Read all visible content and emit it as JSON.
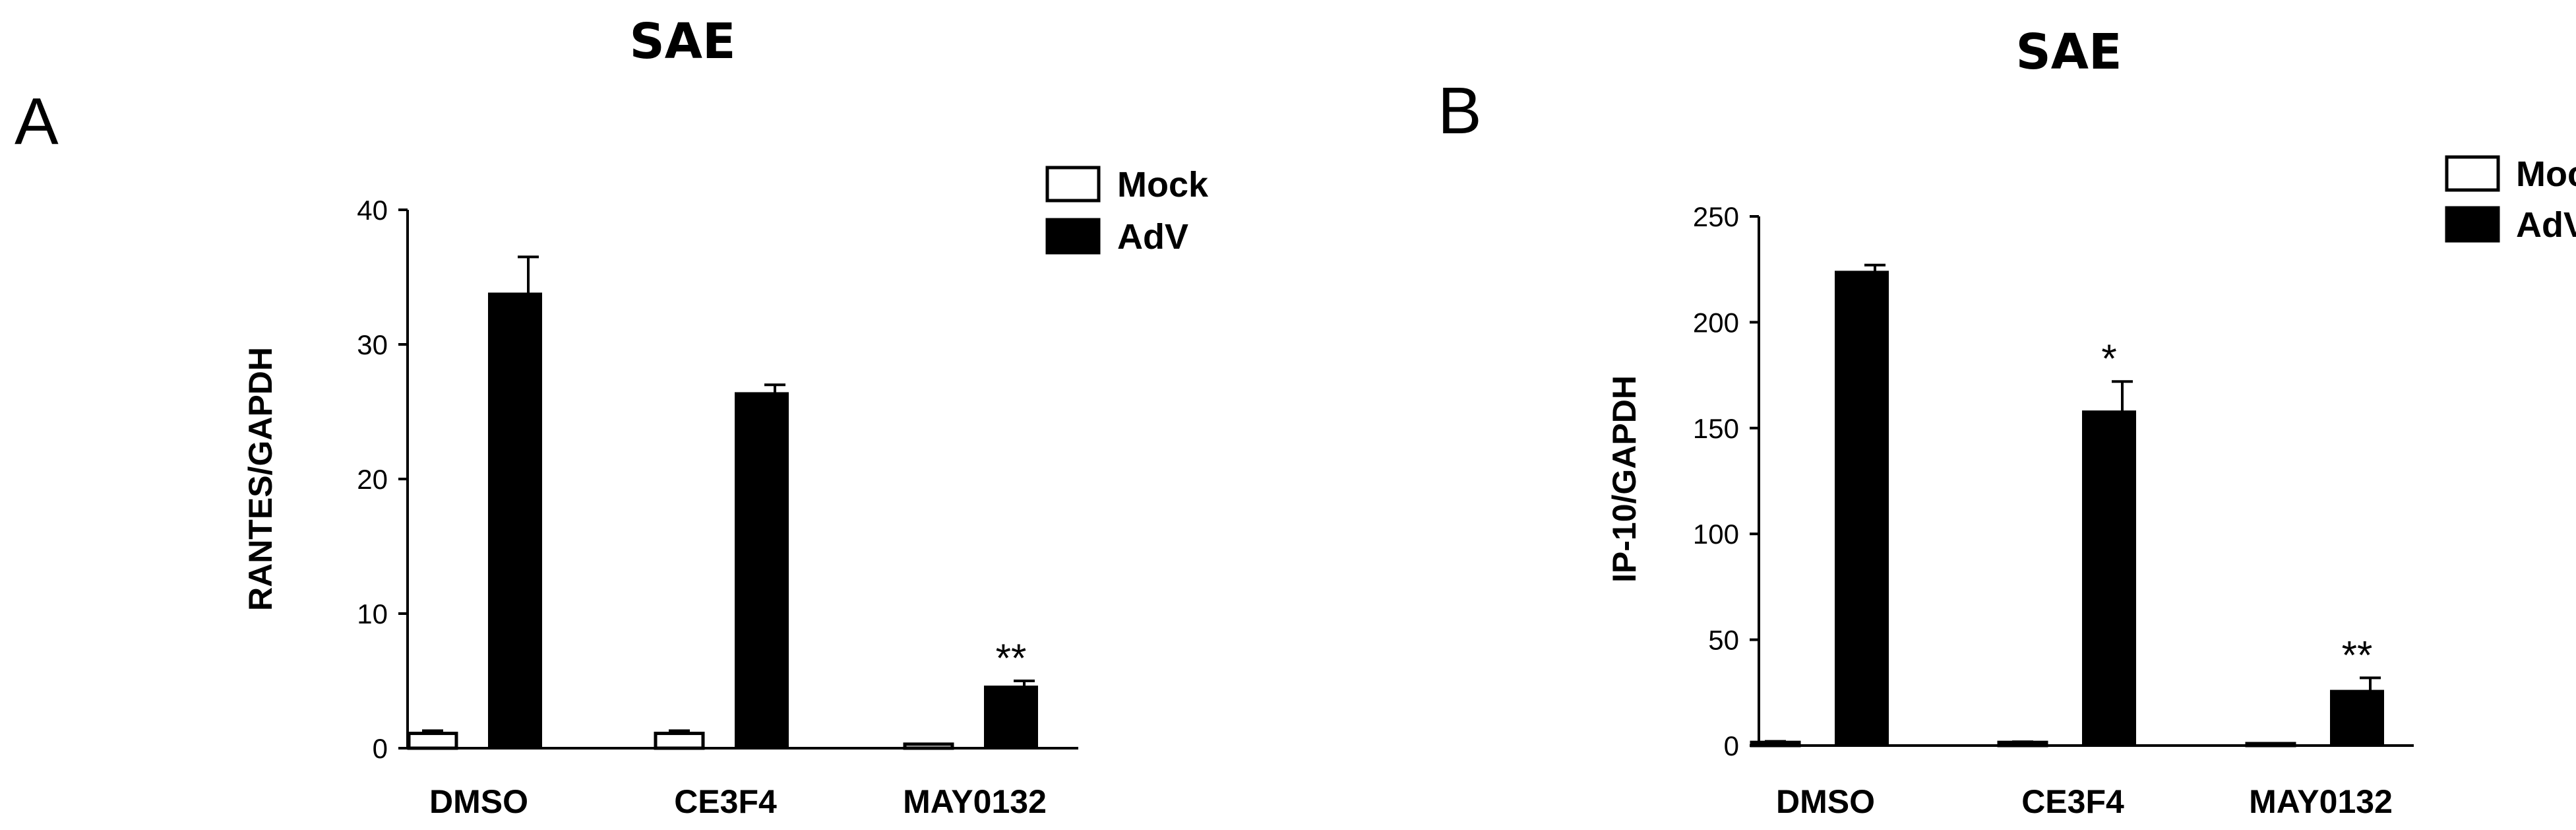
{
  "chart_data": [
    {
      "panel": "A",
      "type": "bar",
      "title": "SAE",
      "xlabel": "",
      "ylabel": "RANTES/GAPDH",
      "ylim": [
        0,
        40
      ],
      "yticks": [
        0,
        10,
        20,
        30,
        40
      ],
      "categories": [
        "DMSO",
        "CE3F4",
        "MAY0132"
      ],
      "series": [
        {
          "name": "Mock",
          "color": "#ffffff",
          "values": [
            1.1,
            1.1,
            0.3
          ],
          "errors": [
            0.2,
            0.2,
            0.0
          ]
        },
        {
          "name": "AdV",
          "color": "#000000",
          "values": [
            33.8,
            26.4,
            4.6
          ],
          "errors": [
            2.7,
            0.6,
            0.4
          ]
        }
      ],
      "annotations": [
        "",
        "",
        "**"
      ],
      "legend_position": "top-right",
      "grid": false
    },
    {
      "panel": "B",
      "type": "bar",
      "title": "SAE",
      "xlabel": "",
      "ylabel": "IP-10/GAPDH",
      "ylim": [
        0,
        250
      ],
      "yticks": [
        0,
        50,
        100,
        150,
        200,
        250
      ],
      "categories": [
        "DMSO",
        "CE3F4",
        "MAY0132"
      ],
      "series": [
        {
          "name": "Mock",
          "color": "#ffffff",
          "values": [
            1.5,
            1.5,
            0.8
          ],
          "errors": [
            0.5,
            0.3,
            0.2
          ]
        },
        {
          "name": "AdV",
          "color": "#000000",
          "values": [
            224,
            158,
            26
          ],
          "errors": [
            3,
            14,
            6
          ]
        }
      ],
      "annotations": [
        "",
        "*",
        "**"
      ],
      "legend_position": "top-right",
      "grid": false
    }
  ]
}
